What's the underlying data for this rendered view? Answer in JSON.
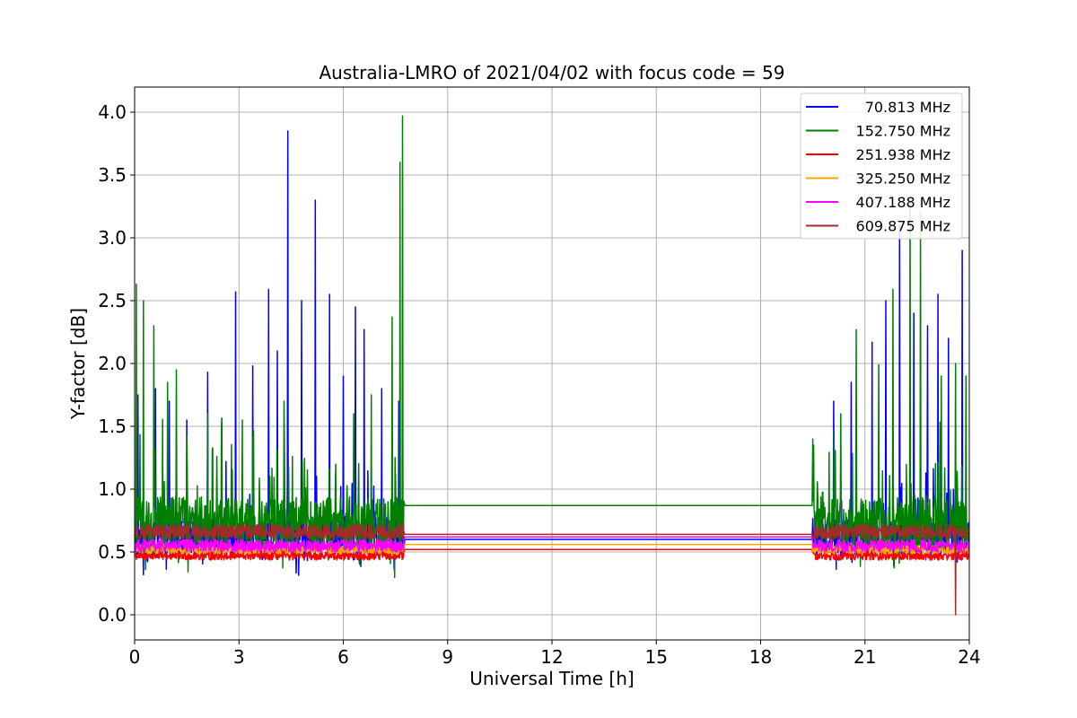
{
  "chart_data": {
    "type": "line",
    "title": "Australia-LMRO of 2021/04/02 with focus code = 59",
    "xlabel": "Universal Time [h]",
    "ylabel": "Y-factor [dB]",
    "xlim": [
      0,
      24
    ],
    "ylim": [
      -0.2,
      4.2
    ],
    "xticks": [
      0,
      3,
      6,
      9,
      12,
      15,
      18,
      21,
      24
    ],
    "yticks": [
      0.0,
      0.5,
      1.0,
      1.5,
      2.0,
      2.5,
      3.0,
      3.5,
      4.0
    ],
    "xtick_labels": [
      "0",
      "3",
      "6",
      "9",
      "12",
      "15",
      "18",
      "21",
      "24"
    ],
    "ytick_labels": [
      "0.0",
      "0.5",
      "1.0",
      "1.5",
      "2.0",
      "2.5",
      "3.0",
      "3.5",
      "4.0"
    ],
    "grid": true,
    "legend_position": "top-right",
    "data_gap": [
      7.75,
      19.5
    ],
    "series": [
      {
        "name": "70.813 MHz",
        "color": "#0000ff",
        "baseline": 0.62,
        "noise": 0.16,
        "gap_level": 0.6,
        "peaks": [
          [
            0.1,
            1.75
          ],
          [
            0.6,
            1.8
          ],
          [
            1.0,
            1.7
          ],
          [
            1.5,
            1.55
          ],
          [
            2.1,
            1.93
          ],
          [
            2.9,
            2.57
          ],
          [
            3.4,
            1.98
          ],
          [
            3.85,
            2.59
          ],
          [
            4.1,
            2.1
          ],
          [
            4.4,
            3.85
          ],
          [
            4.8,
            2.5
          ],
          [
            5.2,
            3.3
          ],
          [
            5.6,
            2.55
          ],
          [
            6.0,
            1.9
          ],
          [
            6.35,
            2.45
          ],
          [
            6.6,
            2.27
          ],
          [
            7.1,
            1.8
          ],
          [
            7.6,
            1.7
          ],
          [
            20.1,
            1.7
          ],
          [
            20.6,
            1.85
          ],
          [
            21.2,
            2.17
          ],
          [
            21.6,
            2.5
          ],
          [
            22.0,
            3.1
          ],
          [
            22.4,
            2.4
          ],
          [
            22.8,
            2.3
          ],
          [
            23.1,
            2.55
          ],
          [
            23.4,
            2.2
          ],
          [
            23.8,
            2.9
          ]
        ]
      },
      {
        "name": "152.750 MHz",
        "color": "#008000",
        "baseline": 0.72,
        "noise": 0.22,
        "gap_level": 0.87,
        "peaks": [
          [
            0.05,
            2.63
          ],
          [
            0.25,
            2.5
          ],
          [
            0.55,
            2.3
          ],
          [
            0.95,
            1.85
          ],
          [
            1.2,
            1.95
          ],
          [
            2.1,
            1.6
          ],
          [
            2.5,
            1.5
          ],
          [
            3.1,
            1.55
          ],
          [
            4.3,
            1.7
          ],
          [
            6.3,
            1.6
          ],
          [
            6.8,
            1.75
          ],
          [
            7.4,
            2.37
          ],
          [
            7.63,
            3.6
          ],
          [
            7.7,
            3.97
          ],
          [
            19.5,
            1.4
          ],
          [
            20.3,
            1.6
          ],
          [
            20.75,
            2.27
          ],
          [
            21.4,
            1.99
          ],
          [
            21.8,
            2.59
          ],
          [
            22.3,
            3.3
          ],
          [
            22.6,
            3.2
          ],
          [
            23.2,
            1.9
          ],
          [
            23.6,
            2.0
          ],
          [
            23.9,
            1.9
          ]
        ]
      },
      {
        "name": "251.938 MHz",
        "color": "#ff0000",
        "baseline": 0.47,
        "noise": 0.035,
        "gap_level": 0.52,
        "peaks": []
      },
      {
        "name": "325.250 MHz",
        "color": "#ffa500",
        "baseline": 0.52,
        "noise": 0.035,
        "gap_level": 0.56,
        "peaks": []
      },
      {
        "name": "407.188 MHz",
        "color": "#ff00ff",
        "baseline": 0.55,
        "noise": 0.05,
        "gap_level": 0.62,
        "peaks": []
      },
      {
        "name": "609.875 MHz",
        "color": "#a52a2a",
        "baseline": 0.66,
        "noise": 0.06,
        "gap_level": 0.64,
        "peaks": [
          [
            23.6,
            0.0
          ]
        ]
      }
    ]
  }
}
